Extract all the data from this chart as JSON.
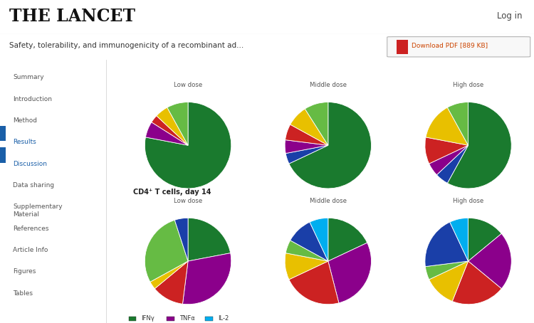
{
  "title_top": "Safety, tolerability, and immunogenicity of a recombinant ad...",
  "header_text": "THE LANCET",
  "login_text": "Log in",
  "cd4_label": "CD4⁺ T cells, day 14",
  "legend_labels": [
    "IFNγ",
    "TNFα",
    "IL-2"
  ],
  "nav_items": [
    "Summary",
    "Introduction",
    "Method",
    "Results",
    "Discussion",
    "Data sharing",
    "Supplementary\nMaterial",
    "References",
    "Article Info",
    "Figures",
    "Tables"
  ],
  "row1_col_labels": [
    "Low dose",
    "Middle dose",
    "High dose"
  ],
  "row2_col_labels": [
    "Low dose",
    "Middle dose",
    "High dose"
  ],
  "pie1_values": [
    78,
    6,
    3,
    5,
    8
  ],
  "pie1_colors": [
    "#1a7a2e",
    "#8b008b",
    "#cc2222",
    "#e8c000",
    "#66bb44"
  ],
  "pie2_values": [
    68,
    4,
    5,
    6,
    8,
    9
  ],
  "pie2_colors": [
    "#1a7a2e",
    "#1a3fa8",
    "#8b008b",
    "#cc2222",
    "#e8c000",
    "#66bb44"
  ],
  "pie3_values": [
    58,
    5,
    5,
    10,
    14,
    8
  ],
  "pie3_colors": [
    "#1a7a2e",
    "#1a3fa8",
    "#8b008b",
    "#cc2222",
    "#e8c000",
    "#66bb44"
  ],
  "pie4_values": [
    22,
    30,
    12,
    3,
    28,
    5
  ],
  "pie4_colors": [
    "#1a7a2e",
    "#8b008b",
    "#cc2222",
    "#e8c000",
    "#66bb44",
    "#1a3fa8",
    "#00aeef"
  ],
  "pie5_values": [
    18,
    28,
    22,
    10,
    5,
    10,
    7
  ],
  "pie5_colors": [
    "#1a7a2e",
    "#8b008b",
    "#cc2222",
    "#e8c000",
    "#66bb44",
    "#1a3fa8",
    "#00aeef"
  ],
  "pie6_values": [
    14,
    22,
    20,
    12,
    5,
    20,
    7
  ],
  "pie6_colors": [
    "#1a7a2e",
    "#8b008b",
    "#cc2222",
    "#e8c000",
    "#66bb44",
    "#1a3fa8",
    "#00aeef"
  ],
  "bg_color": "#ffffff"
}
